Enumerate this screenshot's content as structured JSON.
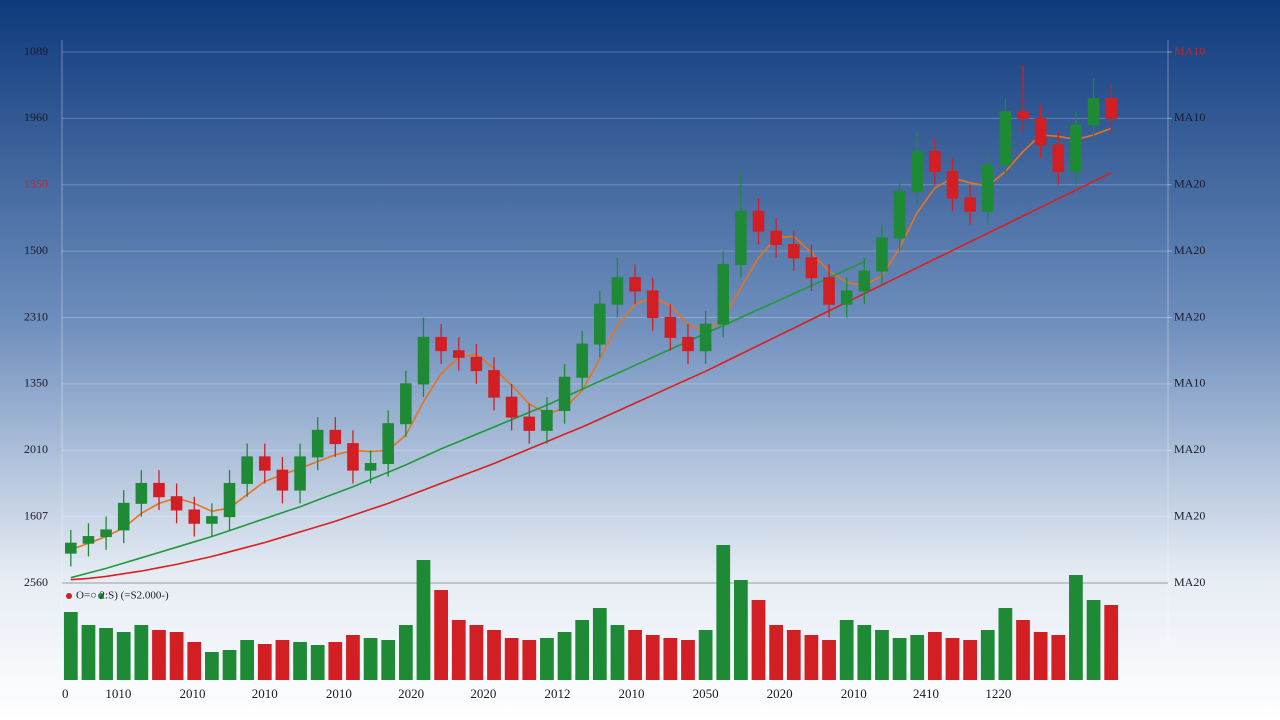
{
  "chart_data": {
    "type": "candlestick",
    "grid": true,
    "xlim": [
      -0.5,
      59.5
    ],
    "xticks": [
      {
        "value": -0.5,
        "label": "0"
      },
      {
        "value": 2.7,
        "label": "1010"
      },
      {
        "value": 6.9,
        "label": "2010"
      },
      {
        "value": 11,
        "label": "2010"
      },
      {
        "value": 15.2,
        "label": "2010"
      },
      {
        "value": 19.3,
        "label": "2020"
      },
      {
        "value": 23.4,
        "label": "2020"
      },
      {
        "value": 27.6,
        "label": "2012"
      },
      {
        "value": 31.8,
        "label": "2010"
      },
      {
        "value": 36,
        "label": "2050"
      },
      {
        "value": 40.2,
        "label": "2020"
      },
      {
        "value": 44.4,
        "label": "2010"
      },
      {
        "value": 48.5,
        "label": "2410"
      },
      {
        "value": 52.6,
        "label": "1220"
      }
    ],
    "ylim": [
      0,
      8
    ],
    "yticks": [
      {
        "value": 8,
        "label": "1089"
      },
      {
        "value": 7,
        "label": "1960"
      },
      {
        "value": 6,
        "label": "1550",
        "color": "#c0272d"
      },
      {
        "value": 5,
        "label": "1500"
      },
      {
        "value": 4,
        "label": "2310"
      },
      {
        "value": 3,
        "label": "1350"
      },
      {
        "value": 2,
        "label": "2010"
      },
      {
        "value": 1,
        "label": "1607"
      },
      {
        "value": 0,
        "label": "2560"
      }
    ],
    "y2lim": [
      0,
      8
    ],
    "y2ticks": [
      {
        "value": 8,
        "label": "MA10",
        "color": "#c0272d"
      },
      {
        "value": 7,
        "label": "MA10"
      },
      {
        "value": 6,
        "label": "MA20"
      },
      {
        "value": 5,
        "label": "MA20"
      },
      {
        "value": 4,
        "label": "MA20"
      },
      {
        "value": 3,
        "label": "MA10"
      },
      {
        "value": 2,
        "label": "MA20"
      },
      {
        "value": 1,
        "label": "MA20"
      },
      {
        "value": 0,
        "label": "MA20"
      }
    ],
    "up_color": "#1e8a36",
    "down_color": "#d11f24",
    "candles": {
      "open": [
        0.45,
        0.6,
        0.7,
        0.8,
        1.2,
        1.5,
        1.3,
        1.1,
        0.9,
        1.0,
        1.5,
        1.9,
        1.7,
        1.4,
        1.9,
        2.3,
        2.1,
        1.7,
        1.8,
        2.4,
        3.0,
        3.7,
        3.5,
        3.4,
        3.2,
        2.8,
        2.5,
        2.3,
        2.6,
        3.1,
        3.6,
        4.2,
        4.6,
        4.4,
        4.0,
        3.7,
        3.5,
        3.9,
        4.8,
        5.6,
        5.3,
        5.1,
        4.9,
        4.6,
        4.2,
        4.4,
        4.7,
        5.2,
        5.9,
        6.5,
        6.2,
        5.8,
        5.6,
        6.3,
        7.1,
        7.0,
        6.6,
        6.2,
        6.9,
        7.3
      ],
      "high": [
        0.8,
        0.9,
        1.0,
        1.4,
        1.7,
        1.7,
        1.5,
        1.3,
        1.2,
        1.7,
        2.1,
        2.1,
        1.9,
        2.1,
        2.5,
        2.5,
        2.3,
        2.0,
        2.6,
        3.2,
        4.0,
        3.9,
        3.7,
        3.6,
        3.4,
        3.0,
        2.7,
        2.8,
        3.3,
        3.8,
        4.4,
        4.9,
        4.8,
        4.6,
        4.2,
        3.9,
        4.1,
        5.0,
        6.2,
        5.8,
        5.5,
        5.3,
        5.1,
        4.8,
        4.6,
        4.9,
        5.4,
        6.1,
        6.8,
        6.7,
        6.4,
        6.0,
        6.5,
        7.3,
        7.8,
        7.2,
        6.8,
        7.1,
        7.6,
        7.5
      ],
      "low": [
        0.25,
        0.4,
        0.5,
        0.6,
        1.0,
        1.1,
        0.9,
        0.7,
        0.7,
        0.8,
        1.3,
        1.5,
        1.2,
        1.2,
        1.7,
        1.9,
        1.5,
        1.5,
        1.6,
        2.2,
        2.8,
        3.3,
        3.2,
        3.0,
        2.6,
        2.3,
        2.1,
        2.1,
        2.4,
        2.9,
        3.4,
        4.0,
        4.2,
        3.8,
        3.5,
        3.3,
        3.3,
        3.7,
        4.6,
        5.1,
        4.9,
        4.7,
        4.4,
        4.0,
        4.0,
        4.2,
        4.5,
        5.0,
        5.7,
        6.0,
        5.6,
        5.4,
        5.4,
        6.1,
        6.8,
        6.4,
        6.0,
        6.0,
        6.7,
        6.8
      ],
      "close": [
        0.6,
        0.7,
        0.8,
        1.2,
        1.5,
        1.3,
        1.1,
        0.9,
        1.0,
        1.5,
        1.9,
        1.7,
        1.4,
        1.9,
        2.3,
        2.1,
        1.7,
        1.8,
        2.4,
        3.0,
        3.7,
        3.5,
        3.4,
        3.2,
        2.8,
        2.5,
        2.3,
        2.6,
        3.1,
        3.6,
        4.2,
        4.6,
        4.4,
        4.0,
        3.7,
        3.5,
        3.9,
        4.8,
        5.6,
        5.3,
        5.1,
        4.9,
        4.6,
        4.2,
        4.4,
        4.7,
        5.2,
        5.9,
        6.5,
        6.2,
        5.8,
        5.6,
        6.3,
        7.1,
        7.0,
        6.6,
        6.2,
        6.9,
        7.3,
        7.0
      ]
    },
    "series": [
      {
        "color": "#e8731a",
        "values": [
          0.5,
          0.6,
          0.7,
          0.83,
          1.05,
          1.2,
          1.28,
          1.2,
          1.08,
          1.13,
          1.33,
          1.53,
          1.63,
          1.73,
          1.83,
          1.93,
          2.0,
          1.98,
          2.0,
          2.23,
          2.73,
          3.15,
          3.4,
          3.45,
          3.23,
          2.98,
          2.7,
          2.55,
          2.63,
          2.9,
          3.38,
          3.88,
          4.2,
          4.3,
          4.18,
          3.9,
          3.78,
          3.98,
          4.45,
          4.9,
          5.2,
          5.22,
          4.98,
          4.7,
          4.53,
          4.48,
          4.63,
          5.05,
          5.58,
          5.95,
          6.1,
          6.03,
          5.98,
          6.2,
          6.5,
          6.75,
          6.73,
          6.68,
          6.75,
          6.85
        ]
      },
      {
        "color": "#1f9a3a",
        "values": [
          0.08,
          0.15,
          0.22,
          0.3,
          0.38,
          0.46,
          0.54,
          0.62,
          0.7,
          0.79,
          0.88,
          0.97,
          1.06,
          1.15,
          1.25,
          1.35,
          1.45,
          1.56,
          1.67,
          1.78,
          1.9,
          2.02,
          2.13,
          2.24,
          2.35,
          2.46,
          2.57,
          2.68,
          2.8,
          2.92,
          3.04,
          3.16,
          3.28,
          3.4,
          3.52,
          3.64,
          3.76,
          3.88,
          4.0,
          4.12,
          4.24,
          4.36,
          4.48,
          4.6,
          4.72,
          4.84,
          null,
          null,
          null,
          null,
          null,
          null,
          null,
          null,
          null,
          null,
          null,
          null,
          null,
          null
        ]
      },
      {
        "color": "#d8201f",
        "values": [
          0.05,
          0.07,
          0.1,
          0.14,
          0.18,
          0.23,
          0.28,
          0.34,
          0.4,
          0.47,
          0.54,
          0.61,
          0.69,
          0.77,
          0.85,
          0.93,
          1.02,
          1.11,
          1.2,
          1.3,
          1.4,
          1.5,
          1.6,
          1.7,
          1.8,
          1.91,
          2.02,
          2.13,
          2.24,
          2.35,
          2.47,
          2.59,
          2.71,
          2.83,
          2.95,
          3.07,
          3.19,
          3.32,
          3.45,
          3.58,
          3.71,
          3.84,
          3.97,
          4.1,
          4.23,
          4.36,
          4.49,
          4.62,
          4.75,
          4.88,
          5.01,
          5.14,
          5.27,
          5.4,
          5.53,
          5.66,
          5.79,
          5.92,
          6.05,
          6.18
        ]
      }
    ],
    "volume": {
      "ylim": [
        0,
        140
      ],
      "values": [
        68,
        55,
        52,
        48,
        55,
        50,
        48,
        38,
        28,
        30,
        40,
        36,
        40,
        38,
        35,
        38,
        45,
        42,
        40,
        55,
        120,
        90,
        60,
        55,
        50,
        42,
        40,
        42,
        48,
        60,
        72,
        55,
        50,
        45,
        42,
        40,
        50,
        135,
        100,
        80,
        55,
        50,
        45,
        40,
        60,
        55,
        50,
        42,
        45,
        48,
        42,
        40,
        50,
        72,
        60,
        48,
        45,
        105,
        80,
        75
      ]
    },
    "legend_text": "O=○ 2:S) (=S2.000-)"
  }
}
